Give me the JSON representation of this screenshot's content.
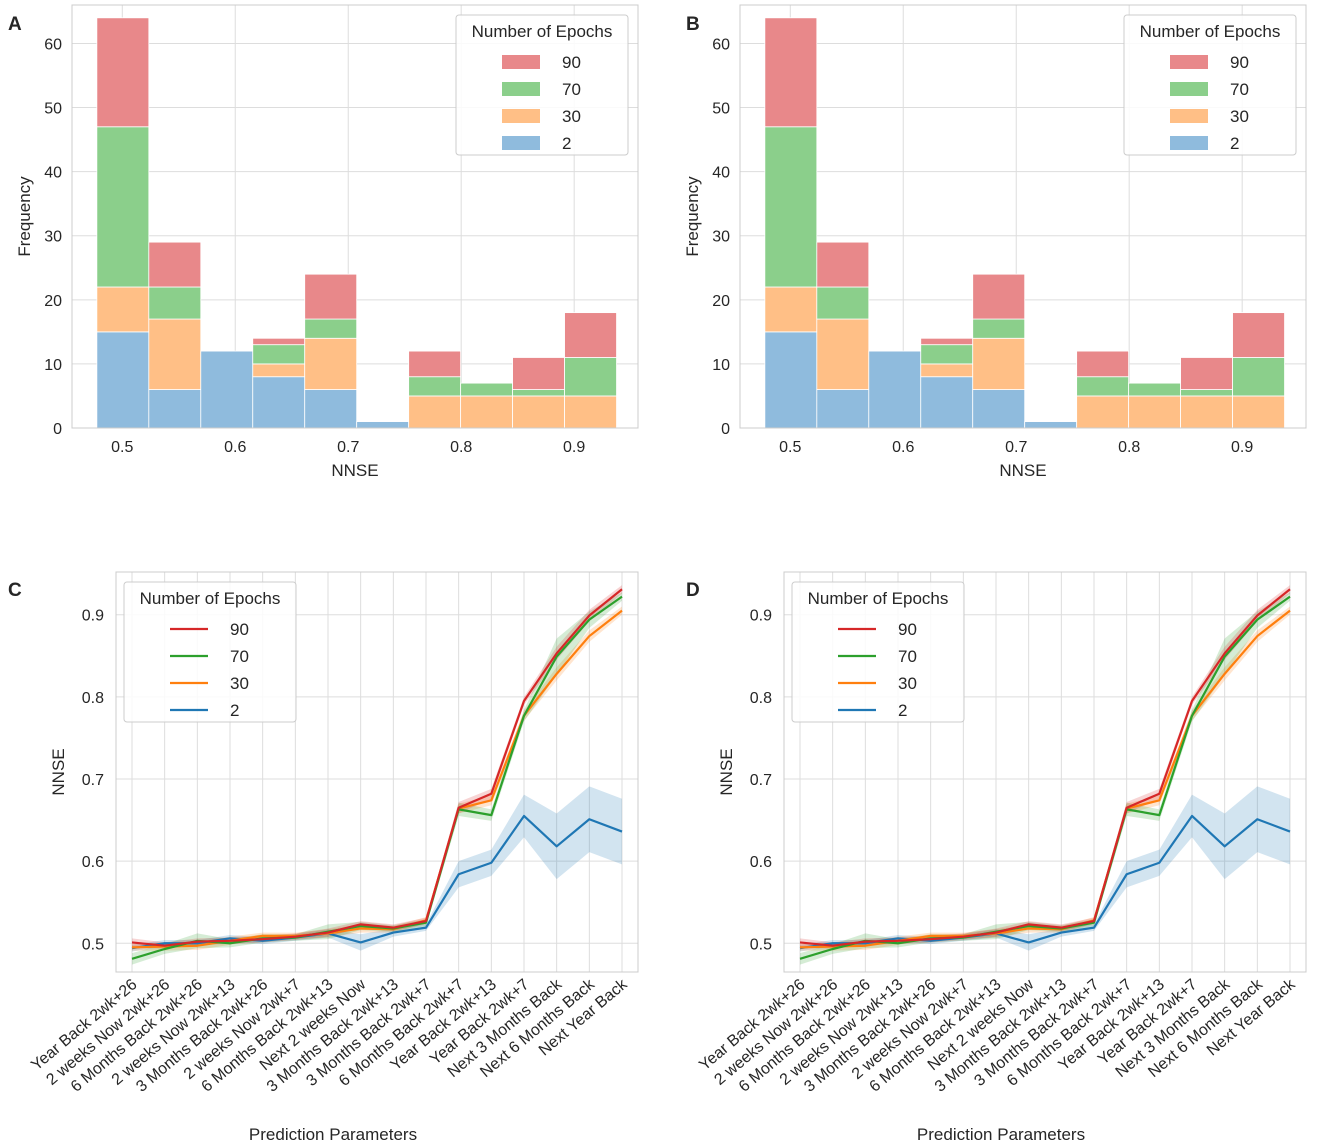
{
  "panels": {
    "A": "A",
    "B": "B",
    "C": "C",
    "D": "D"
  },
  "colors": {
    "e90": "#d62728",
    "e70": "#2ca02c",
    "e30": "#ff7f0e",
    "e2": "#1f77b4",
    "hist90": "#e8888a",
    "hist70": "#8bcf8b",
    "hist30": "#ffbf86",
    "hist2": "#8fbbdd",
    "grid": "#dddddd",
    "frame": "#cccccc"
  },
  "chart_data": [
    {
      "panel": "A",
      "type": "bar",
      "stacked": true,
      "xlabel": "NNSE",
      "ylabel": "Frequency",
      "xlim": [
        0.4555,
        0.9565
      ],
      "ylim": [
        0,
        66
      ],
      "xticks": [
        "0.5",
        "0.6",
        "0.7",
        "0.8",
        "0.9"
      ],
      "xtick_values": [
        0.5,
        0.6,
        0.7,
        0.8,
        0.9
      ],
      "yticks": [
        "0",
        "10",
        "20",
        "30",
        "40",
        "50",
        "60"
      ],
      "ytick_values": [
        0,
        10,
        20,
        30,
        40,
        50,
        60
      ],
      "bin_edges": [
        0.4775,
        0.5235,
        0.5695,
        0.6155,
        0.6615,
        0.7075,
        0.7535,
        0.7995,
        0.8455,
        0.8915,
        0.9375
      ],
      "legend_title": "Number of Epochs",
      "legend_position": "top-right",
      "series": [
        {
          "name": "2",
          "values": [
            15,
            6,
            12,
            8,
            6,
            1,
            0,
            0,
            0,
            0
          ]
        },
        {
          "name": "30",
          "values": [
            7,
            11,
            0,
            2,
            8,
            0,
            5,
            5,
            5,
            5
          ]
        },
        {
          "name": "70",
          "values": [
            25,
            5,
            0,
            3,
            3,
            0,
            3,
            2,
            1,
            6
          ]
        },
        {
          "name": "90",
          "values": [
            17,
            7,
            0,
            1,
            7,
            0,
            4,
            0,
            5,
            7
          ]
        }
      ],
      "legend_order": [
        "90",
        "70",
        "30",
        "2"
      ]
    },
    {
      "panel": "B",
      "type": "bar",
      "stacked": true,
      "xlabel": "NNSE",
      "ylabel": "Frequency",
      "xlim": [
        0.4555,
        0.9565
      ],
      "ylim": [
        0,
        66
      ],
      "xticks": [
        "0.5",
        "0.6",
        "0.7",
        "0.8",
        "0.9"
      ],
      "xtick_values": [
        0.5,
        0.6,
        0.7,
        0.8,
        0.9
      ],
      "yticks": [
        "0",
        "10",
        "20",
        "30",
        "40",
        "50",
        "60"
      ],
      "ytick_values": [
        0,
        10,
        20,
        30,
        40,
        50,
        60
      ],
      "bin_edges": [
        0.4775,
        0.5235,
        0.5695,
        0.6155,
        0.6615,
        0.7075,
        0.7535,
        0.7995,
        0.8455,
        0.8915,
        0.9375
      ],
      "legend_title": "Number of Epochs",
      "legend_position": "top-right",
      "series": [
        {
          "name": "2",
          "values": [
            15,
            6,
            12,
            8,
            6,
            1,
            0,
            0,
            0,
            0
          ]
        },
        {
          "name": "30",
          "values": [
            7,
            11,
            0,
            2,
            8,
            0,
            5,
            5,
            5,
            5
          ]
        },
        {
          "name": "70",
          "values": [
            25,
            5,
            0,
            3,
            3,
            0,
            3,
            2,
            1,
            6
          ]
        },
        {
          "name": "90",
          "values": [
            17,
            7,
            0,
            1,
            7,
            0,
            4,
            0,
            5,
            7
          ]
        }
      ],
      "legend_order": [
        "90",
        "70",
        "30",
        "2"
      ]
    },
    {
      "panel": "C",
      "type": "line",
      "xlabel": "Prediction Parameters",
      "ylabel": "NNSE",
      "ylim": [
        0.465,
        0.952
      ],
      "yticks": [
        "0.5",
        "0.6",
        "0.7",
        "0.8",
        "0.9"
      ],
      "ytick_values": [
        0.5,
        0.6,
        0.7,
        0.8,
        0.9
      ],
      "categories": [
        "Year Back 2wk+26",
        "2 weeks Now 2wk+26",
        "6 Months Back 2wk+26",
        "2 weeks Now 2wk+13",
        "3 Months Back 2wk+26",
        "2 weeks Now 2wk+7",
        "6 Months Back 2wk+13",
        "Next 2 weeks Now",
        "3 Months Back 2wk+13",
        "3 Months Back 2wk+7",
        "6 Months Back 2wk+7",
        "Year Back 2wk+13",
        "Year Back 2wk+7",
        "Next 3 Months Back",
        "Next 6 Months Back",
        "Next Year Back"
      ],
      "legend_title": "Number of Epochs",
      "legend_position": "top-left",
      "series": [
        {
          "name": "90",
          "values": [
            0.501,
            0.497,
            0.502,
            0.503,
            0.505,
            0.508,
            0.513,
            0.523,
            0.519,
            0.527,
            0.665,
            0.682,
            0.795,
            0.853,
            0.899,
            0.931
          ],
          "band": [
            0.005,
            0.004,
            0.004,
            0.004,
            0.004,
            0.004,
            0.005,
            0.004,
            0.004,
            0.004,
            0.007,
            0.006,
            0.005,
            0.008,
            0.007,
            0.005
          ]
        },
        {
          "name": "70",
          "values": [
            0.481,
            0.493,
            0.503,
            0.5,
            0.506,
            0.507,
            0.514,
            0.521,
            0.518,
            0.525,
            0.663,
            0.656,
            0.777,
            0.849,
            0.894,
            0.922
          ],
          "band": [
            0.007,
            0.006,
            0.009,
            0.005,
            0.005,
            0.004,
            0.009,
            0.005,
            0.004,
            0.004,
            0.008,
            0.007,
            0.007,
            0.022,
            0.01,
            0.005
          ]
        },
        {
          "name": "30",
          "values": [
            0.495,
            0.496,
            0.497,
            0.503,
            0.509,
            0.509,
            0.512,
            0.518,
            0.517,
            0.528,
            0.664,
            0.674,
            0.777,
            0.828,
            0.874,
            0.905
          ],
          "band": [
            0.004,
            0.005,
            0.005,
            0.005,
            0.004,
            0.004,
            0.005,
            0.005,
            0.004,
            0.004,
            0.006,
            0.006,
            0.006,
            0.008,
            0.007,
            0.005
          ]
        },
        {
          "name": "2",
          "values": [
            0.494,
            0.5,
            0.5,
            0.506,
            0.503,
            0.507,
            0.512,
            0.501,
            0.513,
            0.519,
            0.584,
            0.598,
            0.655,
            0.618,
            0.651,
            0.636
          ],
          "band": [
            0.004,
            0.004,
            0.004,
            0.004,
            0.004,
            0.004,
            0.005,
            0.01,
            0.005,
            0.004,
            0.016,
            0.016,
            0.026,
            0.04,
            0.04,
            0.04
          ]
        }
      ],
      "legend_order": [
        "90",
        "70",
        "30",
        "2"
      ]
    },
    {
      "panel": "D",
      "type": "line",
      "xlabel": "Prediction Parameters",
      "ylabel": "NNSE",
      "ylim": [
        0.465,
        0.952
      ],
      "yticks": [
        "0.5",
        "0.6",
        "0.7",
        "0.8",
        "0.9"
      ],
      "ytick_values": [
        0.5,
        0.6,
        0.7,
        0.8,
        0.9
      ],
      "categories": [
        "Year Back 2wk+26",
        "2 weeks Now 2wk+26",
        "6 Months Back 2wk+26",
        "2 weeks Now 2wk+13",
        "3 Months Back 2wk+26",
        "2 weeks Now 2wk+7",
        "6 Months Back 2wk+13",
        "Next 2 weeks Now",
        "3 Months Back 2wk+13",
        "3 Months Back 2wk+7",
        "6 Months Back 2wk+7",
        "Year Back 2wk+13",
        "Year Back 2wk+7",
        "Next 3 Months Back",
        "Next 6 Months Back",
        "Next Year Back"
      ],
      "legend_title": "Number of Epochs",
      "legend_position": "top-left",
      "series": [
        {
          "name": "90",
          "values": [
            0.501,
            0.497,
            0.502,
            0.503,
            0.505,
            0.508,
            0.513,
            0.523,
            0.519,
            0.527,
            0.665,
            0.682,
            0.795,
            0.853,
            0.899,
            0.931
          ],
          "band": [
            0.005,
            0.004,
            0.004,
            0.004,
            0.004,
            0.004,
            0.005,
            0.004,
            0.004,
            0.004,
            0.007,
            0.006,
            0.005,
            0.008,
            0.007,
            0.005
          ]
        },
        {
          "name": "70",
          "values": [
            0.481,
            0.493,
            0.503,
            0.5,
            0.506,
            0.507,
            0.514,
            0.521,
            0.518,
            0.525,
            0.663,
            0.656,
            0.777,
            0.849,
            0.894,
            0.922
          ],
          "band": [
            0.007,
            0.006,
            0.009,
            0.005,
            0.005,
            0.004,
            0.009,
            0.005,
            0.004,
            0.004,
            0.008,
            0.007,
            0.007,
            0.022,
            0.01,
            0.005
          ]
        },
        {
          "name": "30",
          "values": [
            0.495,
            0.496,
            0.497,
            0.503,
            0.509,
            0.509,
            0.512,
            0.518,
            0.517,
            0.528,
            0.664,
            0.674,
            0.777,
            0.828,
            0.874,
            0.905
          ],
          "band": [
            0.004,
            0.005,
            0.005,
            0.005,
            0.004,
            0.004,
            0.005,
            0.005,
            0.004,
            0.004,
            0.006,
            0.006,
            0.006,
            0.008,
            0.007,
            0.005
          ]
        },
        {
          "name": "2",
          "values": [
            0.494,
            0.5,
            0.5,
            0.506,
            0.503,
            0.507,
            0.512,
            0.501,
            0.513,
            0.519,
            0.584,
            0.598,
            0.655,
            0.618,
            0.651,
            0.636
          ],
          "band": [
            0.004,
            0.004,
            0.004,
            0.004,
            0.004,
            0.004,
            0.005,
            0.01,
            0.005,
            0.004,
            0.016,
            0.016,
            0.026,
            0.04,
            0.04,
            0.04
          ]
        }
      ],
      "legend_order": [
        "90",
        "70",
        "30",
        "2"
      ]
    }
  ]
}
